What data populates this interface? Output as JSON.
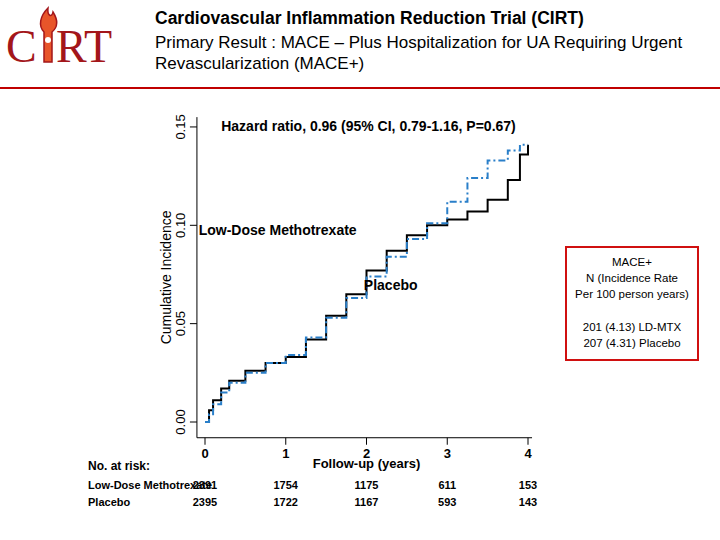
{
  "logo": {
    "left": "C",
    "right": "RT"
  },
  "header": {
    "title": "Cardiovascular Inflammation Reduction Trial (CIRT)",
    "subtitle": "Primary Result : MACE – Plus Hospitalization for UA Requiring Urgent Revascularization (MACE+)"
  },
  "chart_data": {
    "type": "step",
    "annotation": "Hazard ratio, 0.96 (95% CI, 0.79-1.16, P=0.67)",
    "y_label": "Cumulative Incidence",
    "x_label": "Follow-up (years)",
    "x": [
      0,
      0.05,
      0.1,
      0.2,
      0.3,
      0.5,
      0.75,
      1,
      1.25,
      1.5,
      1.75,
      2,
      2.25,
      2.5,
      2.75,
      3,
      3.25,
      3.5,
      3.75,
      3.9,
      4
    ],
    "series": [
      {
        "name": "Low-Dose Methotrexate",
        "color": "#000000",
        "line_style": "solid",
        "values": [
          0,
          0.006,
          0.011,
          0.017,
          0.021,
          0.026,
          0.03,
          0.033,
          0.042,
          0.054,
          0.065,
          0.077,
          0.087,
          0.095,
          0.1,
          0.103,
          0.107,
          0.113,
          0.123,
          0.136,
          0.141
        ]
      },
      {
        "name": "Placebo",
        "color": "#2a7fc9",
        "line_style": "dashdot",
        "values": [
          0,
          0.004,
          0.009,
          0.015,
          0.02,
          0.025,
          0.03,
          0.034,
          0.043,
          0.053,
          0.063,
          0.074,
          0.084,
          0.093,
          0.101,
          0.112,
          0.124,
          0.133,
          0.138,
          0.141,
          0.141
        ]
      }
    ],
    "xlim": [
      -0.1,
      4.05
    ],
    "ylim": [
      -0.008,
      0.155
    ],
    "xticks": [
      0,
      1,
      2,
      3,
      4
    ],
    "yticks": [
      {
        "value": 0,
        "label": "0.00"
      },
      0.05,
      {
        "value": 0.1,
        "label": "0.10"
      },
      0.15
    ],
    "grid": false,
    "info_box": [
      "MACE+",
      "N (Incidence Rate",
      "Per 100 person years)",
      "201 (4.13) LD-MTX",
      "207 (4.31) Placebo"
    ],
    "risk_table": {
      "title": "No. at risk:",
      "x": [
        0,
        1,
        2,
        3,
        4
      ],
      "rows": [
        {
          "name": "Low-Dose Methotrexate",
          "values": [
            2391,
            1754,
            1175,
            611,
            153
          ]
        },
        {
          "name": "Placebo",
          "values": [
            2395,
            1722,
            1167,
            593,
            143
          ]
        }
      ]
    }
  }
}
